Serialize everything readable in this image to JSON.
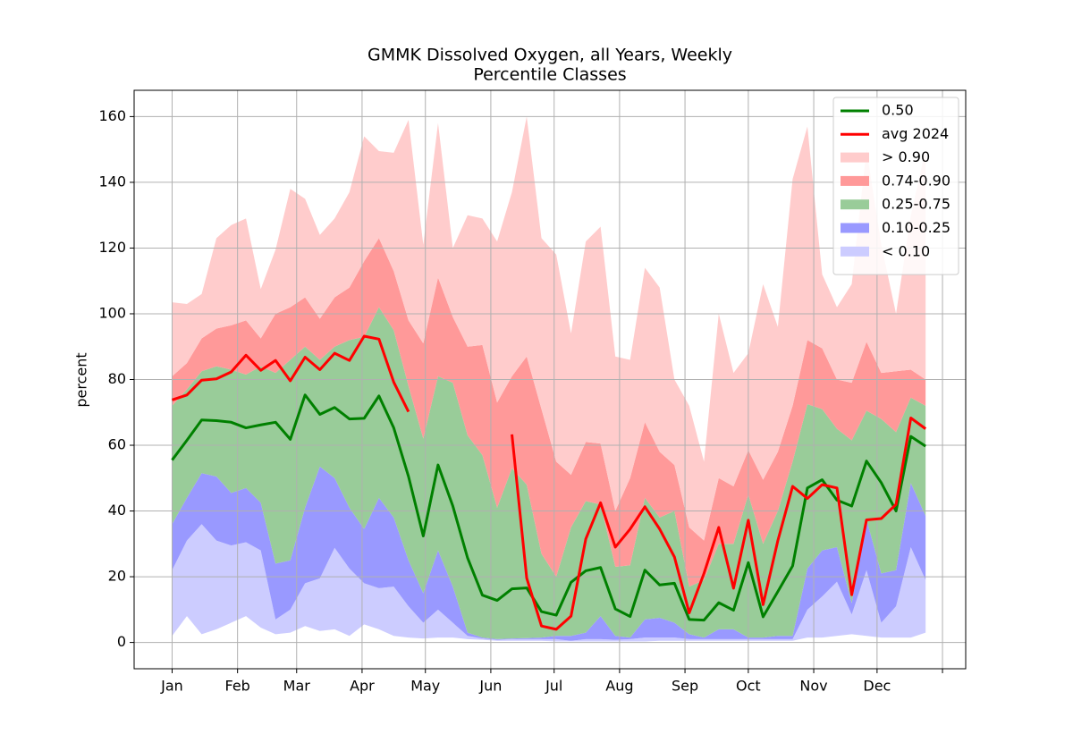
{
  "chart_data": {
    "type": "line",
    "title": "GMMK Dissolved Oxygen, all Years, Weekly",
    "subtitle": "Percentile Classes",
    "ylabel": "percent",
    "x": [
      0,
      7,
      14,
      21,
      28,
      35,
      42,
      49,
      56,
      63,
      70,
      77,
      84,
      91,
      98,
      105,
      112,
      119,
      126,
      133,
      140,
      147,
      154,
      161,
      168,
      175,
      182,
      189,
      196,
      203,
      210,
      217,
      224,
      231,
      238,
      245,
      252,
      259,
      266,
      273,
      280,
      287,
      294,
      301,
      308,
      315,
      322,
      329,
      336,
      343,
      350,
      357
    ],
    "xlim": [
      -18,
      376
    ],
    "xticks": [
      {
        "value": 0,
        "label": "Jan"
      },
      {
        "value": 31,
        "label": "Feb"
      },
      {
        "value": 59,
        "label": "Mar"
      },
      {
        "value": 90,
        "label": "Apr"
      },
      {
        "value": 120,
        "label": "May"
      },
      {
        "value": 151,
        "label": "Jun"
      },
      {
        "value": 181,
        "label": "Jul"
      },
      {
        "value": 212,
        "label": "Aug"
      },
      {
        "value": 243,
        "label": "Sep"
      },
      {
        "value": 273,
        "label": "Oct"
      },
      {
        "value": 304,
        "label": "Nov"
      },
      {
        "value": 334,
        "label": "Dec"
      },
      {
        "value": 365,
        "label": null
      }
    ],
    "ylim": [
      -8,
      168
    ],
    "yticks": [
      0,
      20,
      40,
      60,
      80,
      100,
      120,
      140,
      160
    ],
    "grid": true,
    "legend": "upper right",
    "base": [
      2,
      8,
      2.5,
      4,
      6,
      8,
      4.5,
      2.5,
      3,
      5,
      3.5,
      4,
      2,
      5.5,
      4,
      2,
      1.5,
      1.2,
      1.5,
      1.5,
      1,
      0.8,
      0.5,
      0.5,
      0.5,
      0.5,
      0.3,
      0.3,
      0.3,
      0.3,
      0.3,
      0.3,
      0.3,
      0.5,
      0.5,
      0.5,
      0.5,
      0.5,
      0.5,
      0.5,
      0.5,
      0.5,
      0.5,
      1.5,
      1.5,
      2,
      2.5,
      2,
      1.5,
      1.5,
      1.5,
      3
    ],
    "series": [
      {
        "name": "0.50",
        "kind": "line",
        "color": "#008000",
        "values": [
          55.5,
          61.5,
          67.7,
          67.5,
          67,
          65.3,
          66.2,
          67,
          61.8,
          75.3,
          69.4,
          71.5,
          68,
          68.2,
          75,
          65.3,
          50.5,
          32.4,
          54,
          41.5,
          25.7,
          14.4,
          12.8,
          16.3,
          16.6,
          9.4,
          8.3,
          18.3,
          21.8,
          22.8,
          10.2,
          7.9,
          22,
          17.5,
          18,
          7,
          6.8,
          12.1,
          9.8,
          24.3,
          7.8,
          15.5,
          23.3,
          47,
          49.5,
          43.3,
          41.5,
          55.2,
          48.6,
          40,
          62.7,
          59.7
        ]
      },
      {
        "name": "avg 2024",
        "kind": "line",
        "color": "#ff0000",
        "values": [
          73.8,
          75.3,
          79.8,
          80.2,
          82.3,
          87.4,
          82.8,
          85.8,
          79.6,
          86.8,
          83,
          88,
          85.8,
          93.2,
          92.3,
          79.2,
          70.2,
          null,
          null,
          null,
          null,
          null,
          null,
          63.3,
          19.6,
          5,
          4,
          8,
          31.5,
          42.5,
          29,
          34.5,
          41.3,
          34.5,
          26,
          9,
          21,
          35,
          16.5,
          37.2,
          11.5,
          31,
          47.5,
          43.8,
          48,
          47,
          14.5,
          37.3,
          37.7,
          42,
          68.3,
          65
        ]
      },
      {
        "name": "> 0.90",
        "kind": "band",
        "color": "#ffcccc",
        "values": [
          22.5,
          18,
          13.5,
          27.5,
          30.5,
          31,
          15,
          19.5,
          36,
          30,
          25.5,
          24,
          29,
          38,
          26.5,
          36,
          61,
          30,
          47,
          21,
          40,
          38.5,
          49,
          56,
          73,
          52,
          63,
          43,
          61,
          66,
          47,
          36,
          47,
          50,
          26,
          37,
          24,
          50,
          34.5,
          29.5,
          59.5,
          38,
          69,
          65,
          22.5,
          22,
          30,
          58.5,
          39,
          17.5,
          47,
          70
        ]
      },
      {
        "name": "0.74-0.90",
        "kind": "band",
        "color": "#ff9999",
        "values": [
          9,
          8,
          10,
          11.5,
          13.5,
          16.5,
          8.5,
          18,
          16,
          15,
          12.5,
          15,
          16,
          23,
          21,
          18,
          20,
          29,
          30,
          20,
          27,
          33.5,
          32,
          28,
          39,
          44,
          35,
          16,
          18,
          18.5,
          17,
          26.5,
          23,
          20,
          14,
          18,
          12,
          20,
          17.5,
          13.5,
          19.5,
          18,
          17,
          19.5,
          18.5,
          15,
          17.5,
          21,
          14,
          18.5,
          8.5,
          8
        ]
      },
      {
        "name": "0.25-0.75",
        "kind": "band",
        "color": "#99cc99",
        "values": [
          36,
          33,
          31,
          33.5,
          37.5,
          34.5,
          41.5,
          58,
          61,
          49,
          32.5,
          40,
          51,
          58.5,
          58,
          57,
          53,
          47,
          53,
          62,
          60,
          55.5,
          40,
          51.8,
          46.7,
          25.5,
          18,
          33,
          40,
          34,
          21,
          22,
          37,
          30.5,
          34,
          14.5,
          17.5,
          26,
          26,
          43.5,
          28.5,
          38,
          53,
          50,
          43,
          36,
          49.5,
          33,
          47,
          42,
          26,
          33.5
        ]
      },
      {
        "name": "0.10-0.25",
        "kind": "band",
        "color": "#9999ff",
        "values": [
          14,
          13,
          15.5,
          19.5,
          16,
          16.5,
          14.5,
          17,
          15,
          23,
          34,
          21.2,
          18.5,
          16.5,
          27.5,
          21,
          14,
          9,
          18,
          11,
          1,
          0.3,
          0.2,
          0.2,
          0.3,
          0.5,
          1,
          1.5,
          2,
          7,
          1.2,
          0.5,
          5.5,
          6,
          4.5,
          1.5,
          0.5,
          3,
          3,
          0.5,
          0.5,
          1,
          1,
          12.5,
          14,
          10.5,
          3.5,
          15.5,
          15,
          11,
          19.5,
          19.5
        ]
      },
      {
        "name": "< 0.10",
        "kind": "band",
        "color": "#ccccff",
        "values": [
          20,
          23,
          33.5,
          27,
          23.5,
          22.5,
          23.5,
          4.5,
          7,
          13,
          16,
          24.8,
          20.5,
          12.5,
          12.5,
          15,
          9.5,
          4.8,
          8.5,
          4.5,
          1,
          0.4,
          0.3,
          0.5,
          0.5,
          0.5,
          0.7,
          0.2,
          0.7,
          0.7,
          0.5,
          0.7,
          1.2,
          1,
          1,
          0.5,
          0.5,
          0.5,
          0.5,
          0.5,
          0.5,
          0.5,
          0.5,
          8.5,
          12.5,
          16.5,
          6,
          20,
          4.5,
          9.5,
          27.5,
          16
        ]
      }
    ]
  }
}
